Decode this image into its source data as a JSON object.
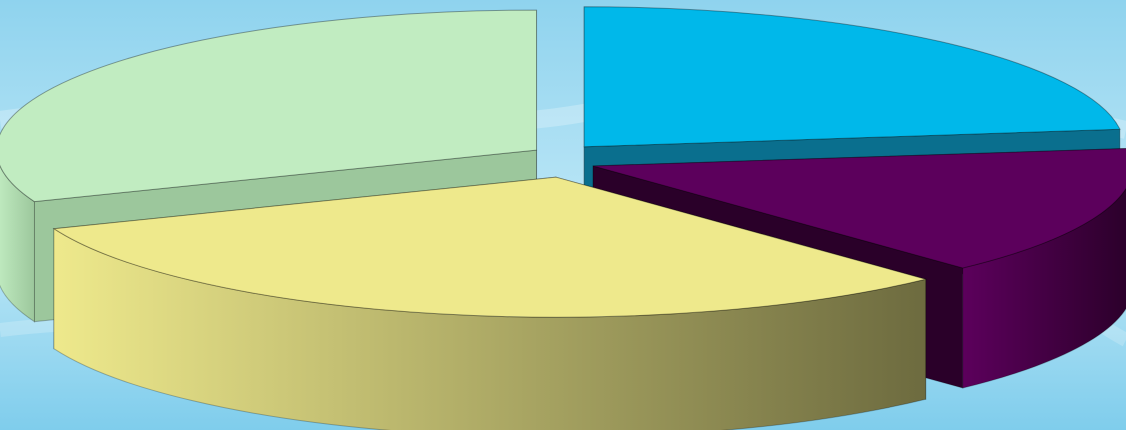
{
  "background": {
    "top_color": "#8fd3ee",
    "mid_color": "#bfe8f7",
    "bottom_color": "#7fcdec"
  },
  "chart_data": {
    "type": "pie",
    "style": "3d-exploded",
    "slices": [
      {
        "value": 23,
        "top_color": "#00b8ea",
        "side_color": "#0a6f8e"
      },
      {
        "value": 15,
        "top_color": "#5c005c",
        "side_color": "#2a0029"
      },
      {
        "value": 31,
        "top_color": "#eee98c",
        "side_color": "#6d6b3f"
      },
      {
        "value": 31,
        "top_color": "#c1ecc1",
        "side_color": "#9cc79c"
      }
    ],
    "legend": "none",
    "data_labels": "none"
  }
}
